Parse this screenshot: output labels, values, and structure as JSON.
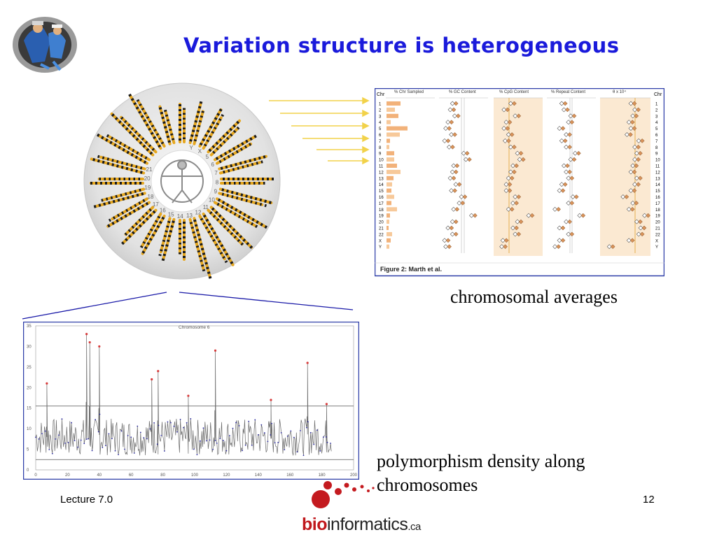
{
  "slide": {
    "title": "Variation structure is heterogeneous",
    "caption_chromosomal": "chromosomal averages",
    "caption_density_line1": "polymorphism density along",
    "caption_density_line2": "chromosomes",
    "footer_left": "Lecture 7.0",
    "footer_page": "12",
    "logo_bold": "bio",
    "logo_rest": "informatics",
    "logo_suffix": ".ca"
  },
  "figure_averages": {
    "caption": "Figure 2: Marth et al.",
    "col_chr": "Chr",
    "panels": [
      "% Chr Sampled",
      "% GC Content",
      "% CpG Content",
      "% Repeat Content",
      "θ x 10⁴"
    ],
    "chromosomes": [
      "1",
      "2",
      "3",
      "4",
      "5",
      "6",
      "7",
      "8",
      "9",
      "10",
      "11",
      "12",
      "13",
      "14",
      "15",
      "16",
      "17",
      "18",
      "19",
      "20",
      "21",
      "22",
      "X",
      "Y"
    ]
  },
  "chart_data": {
    "type": "line",
    "title": "Chromosome 6",
    "ylim": [
      0,
      35
    ],
    "yticks": [
      "35",
      "30",
      "25",
      "20",
      "15",
      "10",
      "5",
      "0"
    ],
    "xlim": [
      0,
      200
    ],
    "xticks": [
      "0",
      "20",
      "40",
      "60",
      "80",
      "100",
      "120",
      "140",
      "160",
      "180",
      "200"
    ],
    "reference_lines": [
      15.5,
      2.5
    ],
    "peaks": [
      {
        "x": 7,
        "y": 21
      },
      {
        "x": 32,
        "y": 33
      },
      {
        "x": 34,
        "y": 31
      },
      {
        "x": 40,
        "y": 30
      },
      {
        "x": 73,
        "y": 22
      },
      {
        "x": 77,
        "y": 24
      },
      {
        "x": 96,
        "y": 18
      },
      {
        "x": 113,
        "y": 29
      },
      {
        "x": 148,
        "y": 17
      },
      {
        "x": 171,
        "y": 26
      },
      {
        "x": 183,
        "y": 16
      }
    ]
  },
  "karyogram": {
    "labels": [
      "21",
      "20",
      "19",
      "18",
      "17",
      "16",
      "15",
      "14",
      "13",
      "12",
      "11",
      "10",
      "9",
      "8",
      "7",
      "6",
      "5",
      "X",
      "Y"
    ]
  }
}
